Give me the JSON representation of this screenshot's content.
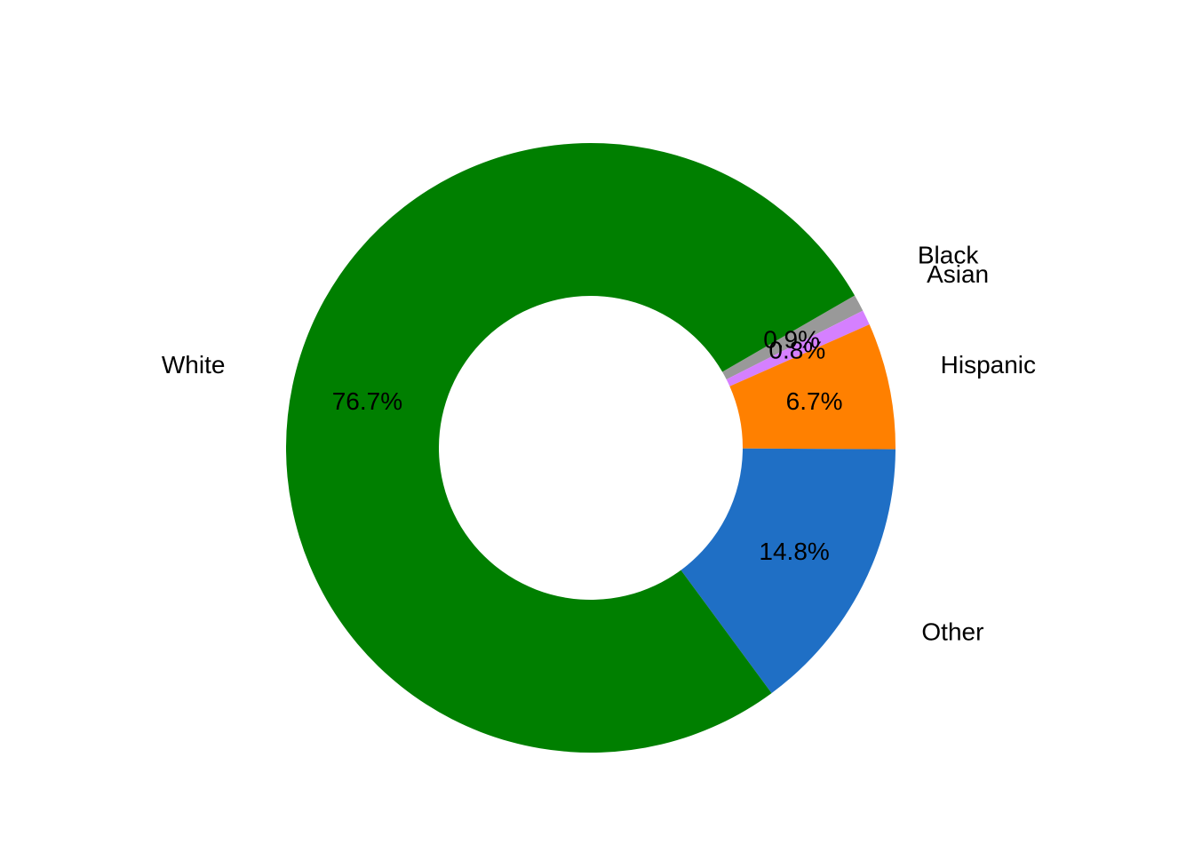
{
  "chart_data": {
    "type": "pie",
    "donut": true,
    "title": "",
    "slices": [
      {
        "name": "Black",
        "value": 0.9,
        "label": "0.9%",
        "color": "#999999"
      },
      {
        "name": "Asian",
        "value": 0.8,
        "label": "0.8%",
        "color": "#d580ff"
      },
      {
        "name": "Hispanic",
        "value": 6.7,
        "label": "6.7%",
        "color": "#ff8000"
      },
      {
        "name": "Other",
        "value": 14.8,
        "label": "14.8%",
        "color": "#1f6fc5"
      },
      {
        "name": "White",
        "value": 76.7,
        "label": "76.7%",
        "color": "#007f00"
      }
    ],
    "legend": "none"
  }
}
